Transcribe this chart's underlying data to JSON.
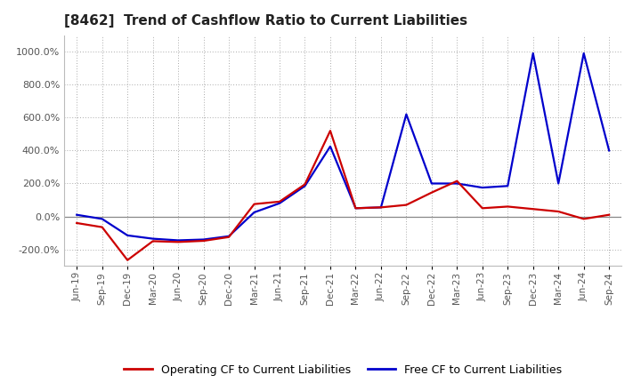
{
  "title": "[8462]  Trend of Cashflow Ratio to Current Liabilities",
  "title_fontsize": 11,
  "ylim": [
    -300,
    1100
  ],
  "yticks": [
    -200,
    0,
    200,
    400,
    600,
    800,
    1000
  ],
  "background_color": "#ffffff",
  "grid_color": "#aaaaaa",
  "operating_color": "#cc0000",
  "free_color": "#0000cc",
  "legend_operating": "Operating CF to Current Liabilities",
  "legend_free": "Free CF to Current Liabilities",
  "x_labels": [
    "Jun-19",
    "Sep-19",
    "Dec-19",
    "Mar-20",
    "Jun-20",
    "Sep-20",
    "Dec-20",
    "Mar-21",
    "Jun-21",
    "Sep-21",
    "Dec-21",
    "Mar-22",
    "Jun-22",
    "Sep-22",
    "Dec-22",
    "Mar-23",
    "Jun-23",
    "Sep-23",
    "Dec-23",
    "Mar-24",
    "Jun-24",
    "Sep-24"
  ],
  "operating_cf": [
    -40,
    -65,
    -265,
    -150,
    -155,
    -148,
    -125,
    75,
    90,
    195,
    520,
    50,
    55,
    70,
    145,
    215,
    50,
    60,
    45,
    30,
    -15,
    10
  ],
  "free_cf": [
    10,
    -15,
    -115,
    -135,
    -145,
    -140,
    -120,
    25,
    80,
    185,
    425,
    50,
    55,
    620,
    200,
    200,
    175,
    185,
    990,
    200,
    990,
    400
  ]
}
